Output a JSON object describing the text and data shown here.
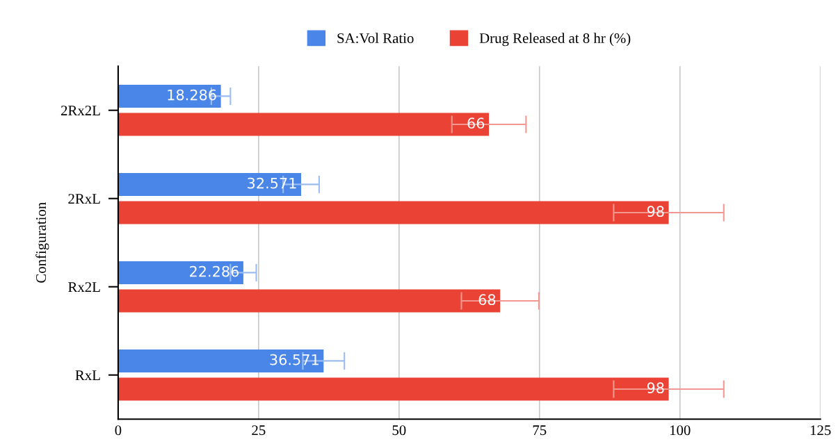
{
  "chart_data": {
    "type": "bar",
    "orientation": "horizontal",
    "ylabel": "Configuration",
    "categories": [
      "2Rx2L",
      "2RxL",
      "Rx2L",
      "RxL"
    ],
    "series": [
      {
        "name": "SA:Vol Ratio",
        "color": "#4a86e8",
        "values": [
          18.286,
          32.571,
          22.286,
          36.571
        ],
        "errors": [
          1.7,
          3.2,
          2.3,
          3.7
        ]
      },
      {
        "name": "Drug Released at 8 hr (%)",
        "color": "#ea4335",
        "values": [
          66,
          98,
          68,
          98
        ],
        "errors": [
          6.6,
          9.8,
          6.9,
          9.8
        ]
      }
    ],
    "xlim": [
      0,
      125
    ],
    "xticks": [
      0,
      25,
      50,
      75,
      100,
      125
    ],
    "grid": "x",
    "legend": "top",
    "data_labels": true
  }
}
